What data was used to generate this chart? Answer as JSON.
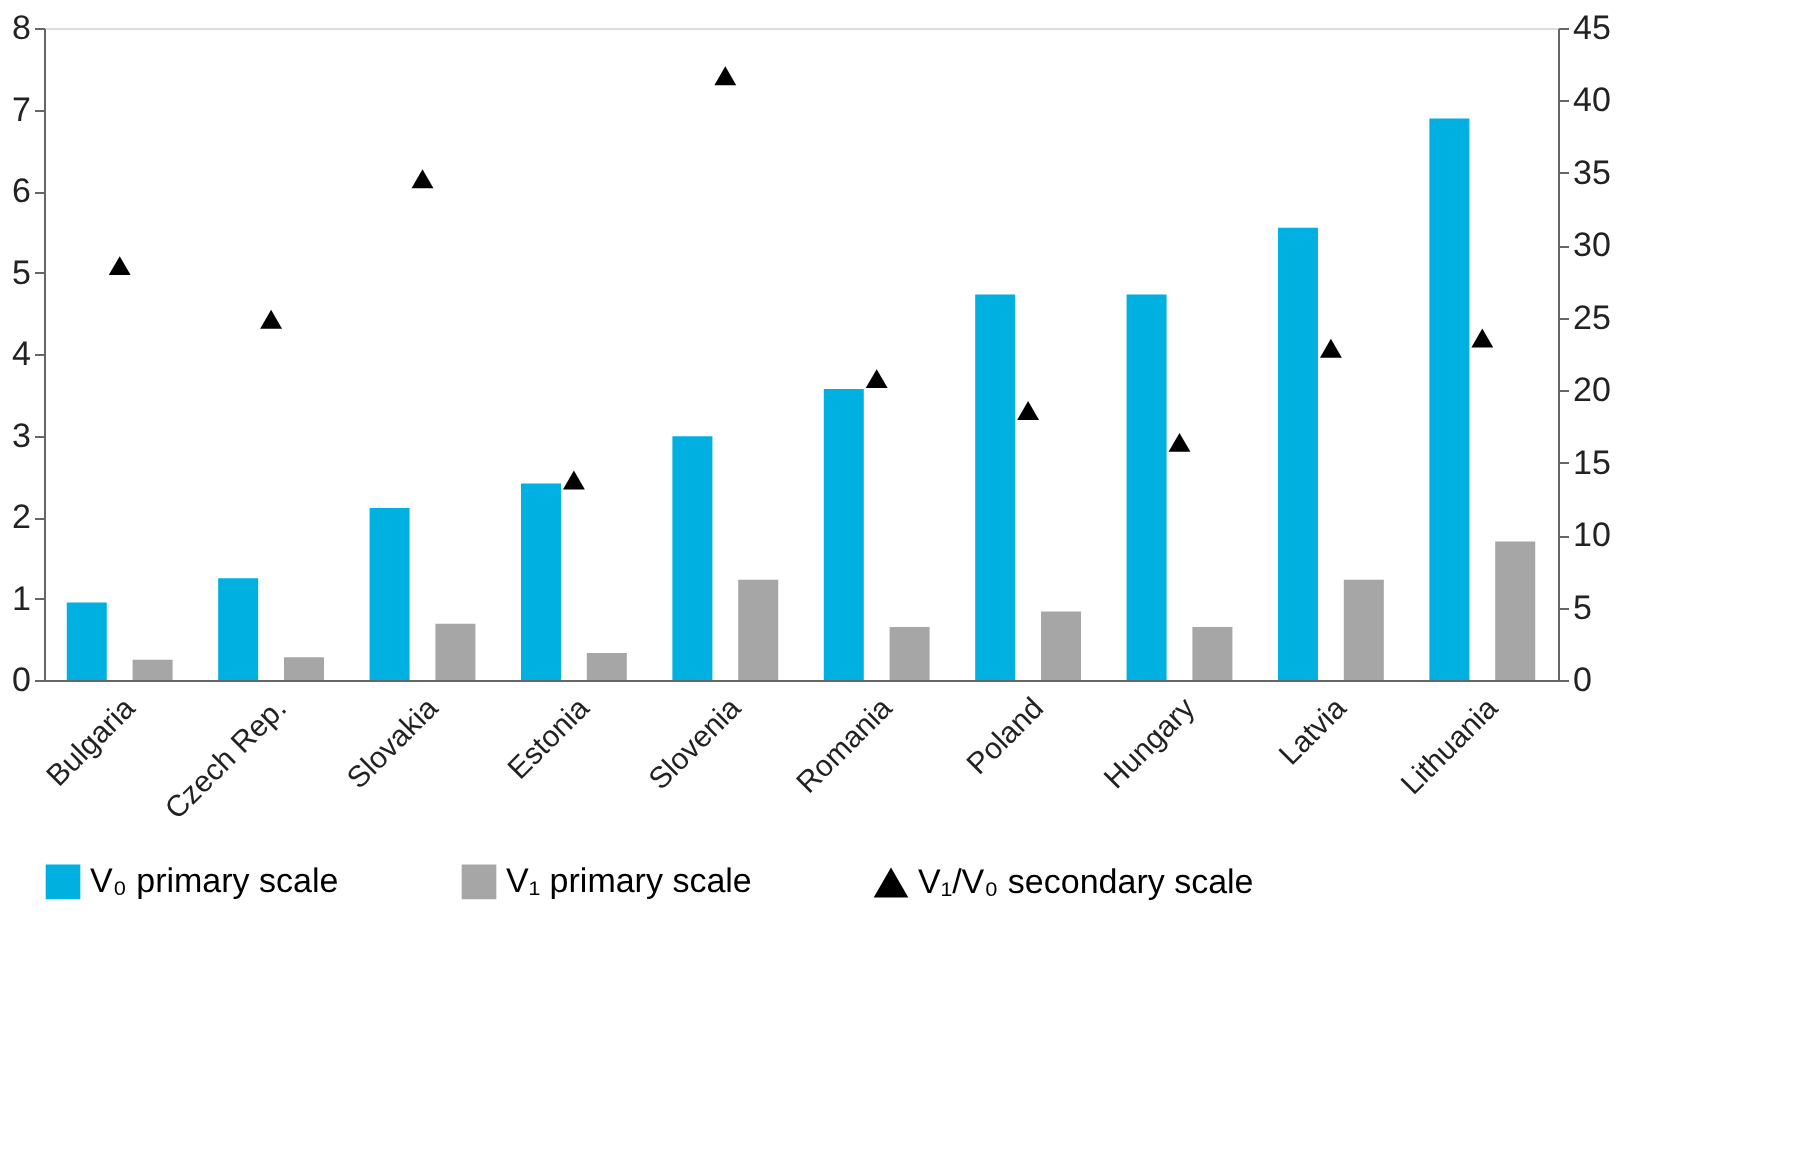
{
  "chart_data": {
    "type": "bar",
    "categories": [
      "Bulgaria",
      "Czech Rep.",
      "Slovakia",
      "Estonia",
      "Slovenia",
      "Romania",
      "Poland",
      "Hungary",
      "Latvia",
      "Lithuania"
    ],
    "series": [
      {
        "name": "V₀ primary scale",
        "color": "#00b0e0",
        "values": [
          0.95,
          1.25,
          2.11,
          2.41,
          2.99,
          3.57,
          4.73,
          4.73,
          5.55,
          6.89
        ]
      },
      {
        "name": "V₁ primary scale",
        "color": "#a6a6a6",
        "values": [
          0.25,
          0.28,
          0.69,
          0.33,
          1.23,
          0.65,
          0.84,
          0.65,
          1.23,
          1.7
        ]
      },
      {
        "name": "V₁/V₀ secondary scale",
        "color": "#000000",
        "type": "scatter",
        "axis": "y2",
        "marker": "triangle",
        "values": [
          28.6,
          24.9,
          34.6,
          13.8,
          41.7,
          20.8,
          18.6,
          16.4,
          22.9,
          23.6
        ]
      }
    ],
    "ylim": [
      0,
      8
    ],
    "yticks": [
      0,
      1,
      2,
      3,
      4,
      5,
      6,
      7,
      8
    ],
    "y2lim": [
      0,
      45
    ],
    "y2ticks": [
      0,
      5,
      10,
      15,
      20,
      25,
      30,
      35,
      40,
      45
    ],
    "grid": false,
    "legend": "bottom"
  }
}
